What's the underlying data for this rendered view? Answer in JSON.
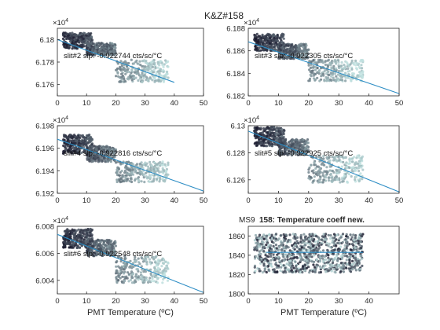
{
  "figure_title": "K&Z#158",
  "colors": {
    "fit_line": "#2b8cc4",
    "axes": "#262626",
    "point_dark": "#1a1a2e",
    "point_light": "#bfe0df"
  },
  "chart_data": [
    {
      "type": "scatter",
      "exponent_label": "×10^4",
      "annotation": "slit#2 slp: -0.922744 cts/sc/°C",
      "xlim": [
        0,
        50
      ],
      "ylim": [
        61.75,
        61.81
      ],
      "xticks": [
        0,
        10,
        20,
        30,
        40,
        50
      ],
      "yticks": [
        61.76,
        61.78,
        61.8
      ],
      "ytick_labels": [
        "6.176",
        "6.178",
        "6.18"
      ],
      "xlabel": "",
      "cloud": [
        {
          "xmin": 2,
          "xmax": 12,
          "ymin": 61.792,
          "ymax": 61.806
        },
        {
          "xmin": 10,
          "xmax": 20,
          "ymin": 61.786,
          "ymax": 61.797
        },
        {
          "xmin": 20,
          "xmax": 38,
          "ymin": 61.762,
          "ymax": 61.782
        }
      ],
      "fit": {
        "x": [
          0,
          40
        ],
        "y": [
          61.8,
          61.762
        ]
      }
    },
    {
      "type": "scatter",
      "exponent_label": "×10^4",
      "annotation": "slit#3 slp: -0.922305 cts/sc/°C",
      "xlim": [
        0,
        50
      ],
      "ylim": [
        61.82,
        61.88
      ],
      "xticks": [
        0,
        10,
        20,
        30,
        40,
        50
      ],
      "yticks": [
        61.82,
        61.84,
        61.86,
        61.88
      ],
      "ytick_labels": [
        "6.182",
        "6.184",
        "6.186",
        "6.188"
      ],
      "xlabel": "",
      "cloud": [
        {
          "xmin": 2,
          "xmax": 12,
          "ymin": 61.86,
          "ymax": 61.875
        },
        {
          "xmin": 10,
          "xmax": 20,
          "ymin": 61.853,
          "ymax": 61.866
        },
        {
          "xmin": 20,
          "xmax": 38,
          "ymin": 61.833,
          "ymax": 61.852
        }
      ],
      "fit": {
        "x": [
          0,
          50
        ],
        "y": [
          61.868,
          61.822
        ]
      }
    },
    {
      "type": "scatter",
      "exponent_label": "×10^4",
      "annotation": "slit#4 slp: -0.922816 cts/sc/°C",
      "xlim": [
        0,
        50
      ],
      "ylim": [
        61.92,
        61.98
      ],
      "xticks": [
        0,
        10,
        20,
        30,
        40,
        50
      ],
      "yticks": [
        61.92,
        61.94,
        61.96,
        61.98
      ],
      "ytick_labels": [
        "6.192",
        "6.194",
        "6.196",
        "6.198"
      ],
      "xlabel": "",
      "cloud": [
        {
          "xmin": 2,
          "xmax": 12,
          "ymin": 61.955,
          "ymax": 61.972
        },
        {
          "xmin": 10,
          "xmax": 20,
          "ymin": 61.948,
          "ymax": 61.962
        },
        {
          "xmin": 20,
          "xmax": 38,
          "ymin": 61.93,
          "ymax": 61.948
        }
      ],
      "fit": {
        "x": [
          0,
          50
        ],
        "y": [
          61.968,
          61.922
        ]
      }
    },
    {
      "type": "scatter",
      "exponent_label": "×10^4",
      "annotation": "slit#5 slp: -0.922925 cts/sc/°C",
      "xlim": [
        0,
        50
      ],
      "ylim": [
        61.25,
        61.3
      ],
      "xticks": [
        0,
        10,
        20,
        30,
        40,
        50
      ],
      "yticks": [
        61.26,
        61.28,
        61.3
      ],
      "ytick_labels": [
        "6.126",
        "6.128",
        "6.13"
      ],
      "xlabel": "",
      "cloud": [
        {
          "xmin": 2,
          "xmax": 12,
          "ymin": 61.285,
          "ymax": 61.299
        },
        {
          "xmin": 10,
          "xmax": 20,
          "ymin": 61.278,
          "ymax": 61.29
        },
        {
          "xmin": 20,
          "xmax": 38,
          "ymin": 61.258,
          "ymax": 61.278
        }
      ],
      "fit": {
        "x": [
          0,
          50
        ],
        "y": [
          61.296,
          61.251
        ]
      }
    },
    {
      "type": "scatter",
      "exponent_label": "×10^4",
      "annotation": "slit#6 slp: -0.922548 cts/sc/°C",
      "xlim": [
        0,
        50
      ],
      "ylim": [
        60.03,
        60.08
      ],
      "xticks": [
        0,
        10,
        20,
        30,
        40,
        50
      ],
      "yticks": [
        60.04,
        60.06,
        60.08
      ],
      "ytick_labels": [
        "6.004",
        "6.006",
        "6.008"
      ],
      "xlabel": "PMT Temperature (ºC)",
      "cloud": [
        {
          "xmin": 2,
          "xmax": 12,
          "ymin": 60.064,
          "ymax": 60.078
        },
        {
          "xmin": 10,
          "xmax": 20,
          "ymin": 60.058,
          "ymax": 60.07
        },
        {
          "xmin": 20,
          "xmax": 38,
          "ymin": 60.038,
          "ymax": 60.058
        }
      ],
      "fit": {
        "x": [
          0,
          50
        ],
        "y": [
          60.074,
          60.031
        ]
      }
    },
    {
      "type": "scatter",
      "exponent_label": "",
      "title_prefix": "MS9",
      "title": "158: Temperature coeff new.",
      "annotation": "",
      "xlim": [
        0,
        50
      ],
      "ylim": [
        1800,
        1870
      ],
      "xticks": [
        0,
        10,
        20,
        30,
        40
      ],
      "yticks": [
        1800,
        1820,
        1840,
        1860
      ],
      "ytick_labels": [
        "1800",
        "1820",
        "1840",
        "1860"
      ],
      "xlabel": "PMT Temperature (ºC)",
      "cloud": [
        {
          "xmin": 2,
          "xmax": 38,
          "ymin": 1822,
          "ymax": 1862
        }
      ],
      "fit": {
        "x": [
          6,
          38
        ],
        "y": [
          1843,
          1843
        ]
      }
    }
  ]
}
